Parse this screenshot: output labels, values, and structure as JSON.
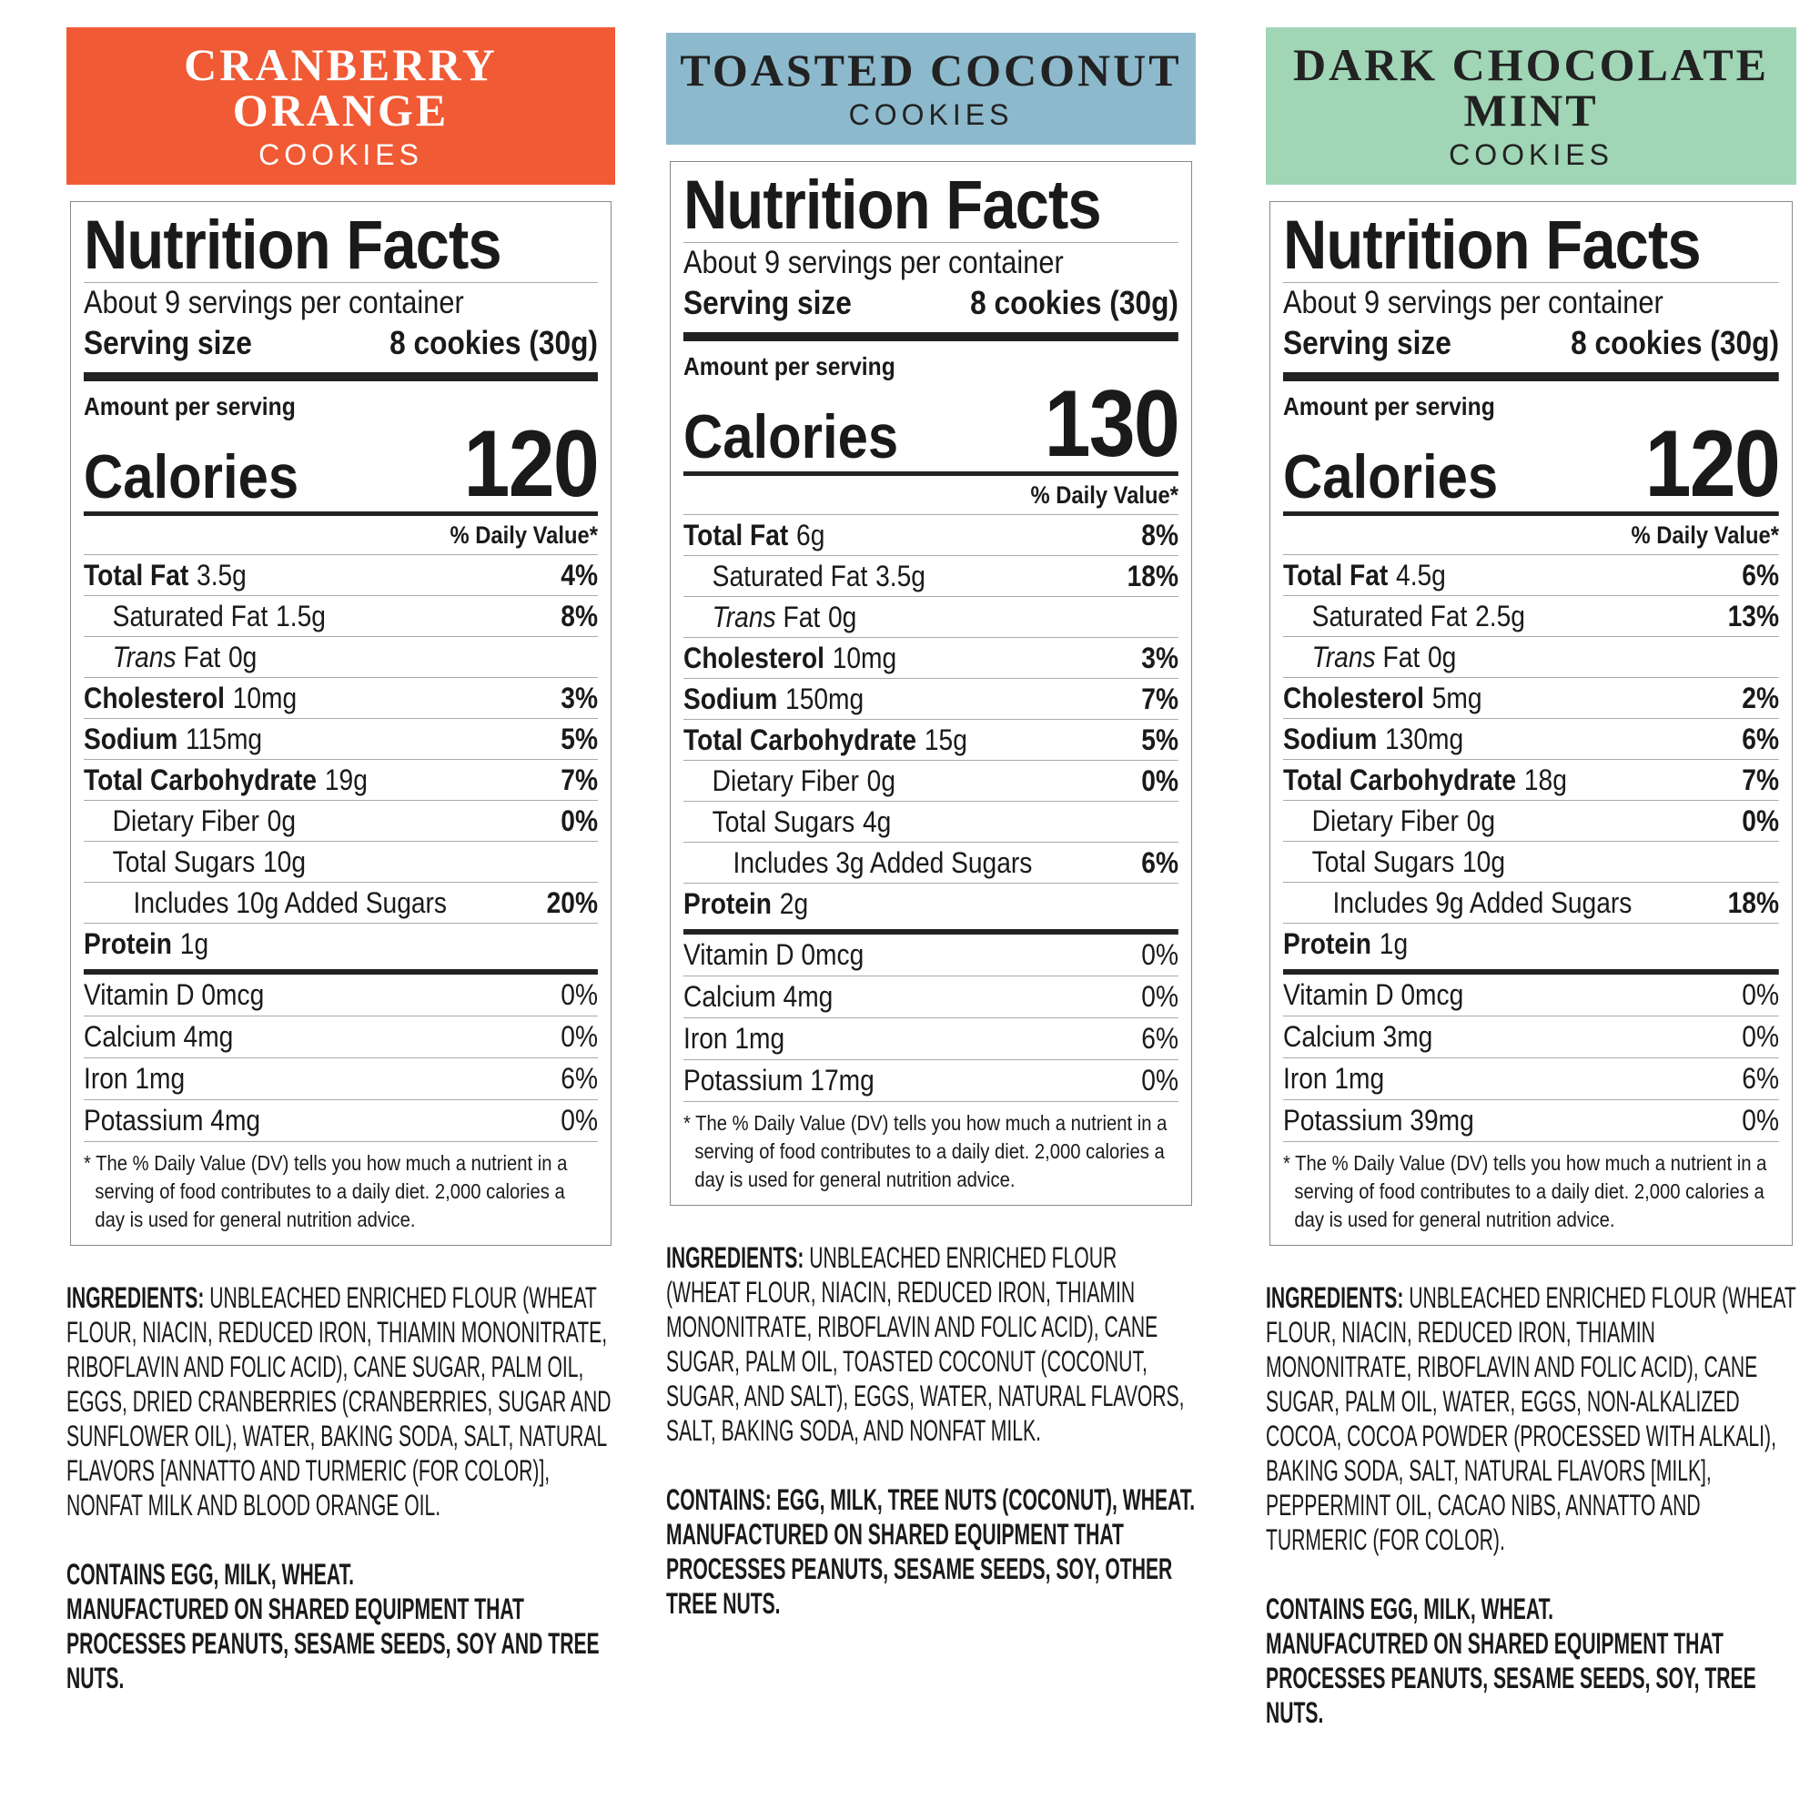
{
  "products": [
    {
      "name": "CRANBERRY ORANGE",
      "subtitle": "COOKIES",
      "header_color": "#f05a34",
      "header_text_color": "#ffffff",
      "label": {
        "title": "Nutrition Facts",
        "servings": "About 9 servings per container",
        "serving_size_label": "Serving size",
        "serving_size": "8 cookies (30g)",
        "amount_per_serving": "Amount per serving",
        "calories_label": "Calories",
        "calories": "120",
        "dv_header": "% Daily Value*",
        "nutrients": [
          {
            "name": "Total Fat",
            "amount": "3.5g",
            "dv": "4%",
            "sub": [
              {
                "name": "Saturated Fat",
                "amount": "1.5g",
                "dv": "8%"
              },
              {
                "name_italic": "Trans",
                "name": "Fat",
                "amount": "0g"
              }
            ]
          },
          {
            "name": "Cholesterol",
            "amount": "10mg",
            "dv": "3%"
          },
          {
            "name": "Sodium",
            "amount": "115mg",
            "dv": "5%"
          },
          {
            "name": "Total Carbohydrate",
            "amount": "19g",
            "dv": "7%",
            "sub": [
              {
                "name": "Dietary Fiber",
                "amount": "0g",
                "dv": "0%"
              },
              {
                "name": "Total Sugars",
                "amount": "10g",
                "sub": [
                  {
                    "name": "Includes 10g Added Sugars",
                    "dv": "20%"
                  }
                ]
              }
            ]
          },
          {
            "name": "Protein",
            "amount": "1g"
          }
        ],
        "vitamins": [
          {
            "name": "Vitamin D 0mcg",
            "dv": "0%"
          },
          {
            "name": "Calcium 4mg",
            "dv": "0%"
          },
          {
            "name": "Iron 1mg",
            "dv": "6%"
          },
          {
            "name": "Potassium 4mg",
            "dv": "0%"
          }
        ],
        "footnote": "* The % Daily Value (DV) tells you how much a nutrient in a serving of food contributes to a daily diet. 2,000 calories a day is used for general nutrition advice."
      },
      "ingredients_label": "INGREDIENTS:",
      "ingredients": "UNBLEACHED ENRICHED FLOUR (WHEAT FLOUR, NIACIN, REDUCED IRON, THIAMIN MONONITRATE, RIBOFLAVIN AND FOLIC ACID), CANE SUGAR, PALM OIL, EGGS, DRIED CRANBERRIES (CRANBERRIES, SUGAR AND SUNFLOWER OIL), WATER, BAKING SODA, SALT, NATURAL FLAVORS [ANNATTO AND TURMERIC (FOR COLOR)], NONFAT MILK AND BLOOD ORANGE OIL.",
      "allergens": [
        "CONTAINS EGG, MILK, WHEAT.",
        "MANUFACTURED ON SHARED EQUIPMENT THAT PROCESSES PEANUTS, SESAME SEEDS, SOY AND TREE NUTS."
      ]
    },
    {
      "name": "TOASTED COCONUT",
      "subtitle": "COOKIES",
      "header_color": "#8db9cc",
      "header_text_color": "#222222",
      "label": {
        "title": "Nutrition Facts",
        "servings": "About 9 servings per container",
        "serving_size_label": "Serving size",
        "serving_size": "8 cookies (30g)",
        "amount_per_serving": "Amount per serving",
        "calories_label": "Calories",
        "calories": "130",
        "dv_header": "% Daily Value*",
        "nutrients": [
          {
            "name": "Total Fat",
            "amount": "6g",
            "dv": "8%",
            "sub": [
              {
                "name": "Saturated Fat",
                "amount": "3.5g",
                "dv": "18%"
              },
              {
                "name_italic": "Trans",
                "name": "Fat",
                "amount": "0g"
              }
            ]
          },
          {
            "name": "Cholesterol",
            "amount": "10mg",
            "dv": "3%"
          },
          {
            "name": "Sodium",
            "amount": "150mg",
            "dv": "7%"
          },
          {
            "name": "Total Carbohydrate",
            "amount": "15g",
            "dv": "5%",
            "sub": [
              {
                "name": "Dietary Fiber",
                "amount": "0g",
                "dv": "0%"
              },
              {
                "name": "Total Sugars",
                "amount": "4g",
                "sub": [
                  {
                    "name": "Includes 3g Added Sugars",
                    "dv": "6%"
                  }
                ]
              }
            ]
          },
          {
            "name": "Protein",
            "amount": "2g"
          }
        ],
        "vitamins": [
          {
            "name": "Vitamin D 0mcg",
            "dv": "0%"
          },
          {
            "name": "Calcium 4mg",
            "dv": "0%"
          },
          {
            "name": "Iron 1mg",
            "dv": "6%"
          },
          {
            "name": "Potassium 17mg",
            "dv": "0%"
          }
        ],
        "footnote": "* The % Daily Value (DV) tells you how much a nutrient in a serving of food contributes to a daily diet. 2,000 calories a day is used for general nutrition advice."
      },
      "ingredients_label": "INGREDIENTS:",
      "ingredients": "UNBLEACHED ENRICHED FLOUR (WHEAT FLOUR, NIACIN, REDUCED IRON, THIAMIN MONONITRATE, RIBOFLAVIN AND FOLIC ACID), CANE SUGAR, PALM OIL, TOASTED COCONUT (COCONUT, SUGAR, AND SALT), EGGS, WATER, NATURAL FLAVORS, SALT, BAKING SODA, AND NONFAT MILK.",
      "allergens": [
        "CONTAINS: EGG, MILK, TREE NUTS (COCONUT), WHEAT.",
        "MANUFACTURED ON SHARED EQUIPMENT THAT PROCESSES PEANUTS, SESAME SEEDS, SOY, OTHER TREE NUTS."
      ]
    },
    {
      "name": "DARK CHOCOLATE MINT",
      "subtitle": "COOKIES",
      "header_color": "#a0d6b6",
      "header_text_color": "#222222",
      "label": {
        "title": "Nutrition Facts",
        "servings": "About 9 servings per container",
        "serving_size_label": "Serving size",
        "serving_size": "8 cookies (30g)",
        "amount_per_serving": "Amount per serving",
        "calories_label": "Calories",
        "calories": "120",
        "dv_header": "% Daily Value*",
        "nutrients": [
          {
            "name": "Total Fat",
            "amount": "4.5g",
            "dv": "6%",
            "sub": [
              {
                "name": "Saturated Fat",
                "amount": "2.5g",
                "dv": "13%"
              },
              {
                "name_italic": "Trans",
                "name": "Fat",
                "amount": "0g"
              }
            ]
          },
          {
            "name": "Cholesterol",
            "amount": "5mg",
            "dv": "2%"
          },
          {
            "name": "Sodium",
            "amount": "130mg",
            "dv": "6%"
          },
          {
            "name": "Total Carbohydrate",
            "amount": "18g",
            "dv": "7%",
            "sub": [
              {
                "name": "Dietary Fiber",
                "amount": "0g",
                "dv": "0%"
              },
              {
                "name": "Total Sugars",
                "amount": "10g",
                "sub": [
                  {
                    "name": "Includes 9g Added Sugars",
                    "dv": "18%"
                  }
                ]
              }
            ]
          },
          {
            "name": "Protein",
            "amount": "1g"
          }
        ],
        "vitamins": [
          {
            "name": "Vitamin D 0mcg",
            "dv": "0%"
          },
          {
            "name": "Calcium 3mg",
            "dv": "0%"
          },
          {
            "name": "Iron 1mg",
            "dv": "6%"
          },
          {
            "name": "Potassium 39mg",
            "dv": "0%"
          }
        ],
        "footnote": "* The % Daily Value (DV) tells you how much a nutrient in a serving of food contributes to a daily diet. 2,000 calories a day is used for general nutrition advice."
      },
      "ingredients_label": "INGREDIENTS:",
      "ingredients": "UNBLEACHED ENRICHED FLOUR (WHEAT FLOUR, NIACIN, REDUCED IRON, THIAMIN MONONITRATE, RIBOFLAVIN AND FOLIC ACID), CANE SUGAR, PALM OIL, WATER, EGGS, NON-ALKALIZED COCOA, COCOA POWDER (PROCESSED WITH ALKALI), BAKING SODA, SALT, NATURAL FLAVORS [MILK], PEPPERMINT OIL, CACAO NIBS, ANNATTO AND TURMERIC (FOR COLOR).",
      "allergens": [
        "CONTAINS EGG, MILK, WHEAT.",
        "MANUFACUTRED ON SHARED EQUIPMENT THAT PROCESSES PEANUTS, SESAME SEEDS, SOY, TREE NUTS."
      ]
    }
  ]
}
